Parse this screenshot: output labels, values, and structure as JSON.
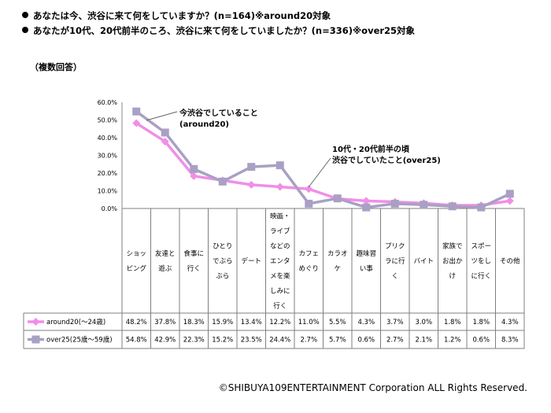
{
  "questions": [
    "あなたは今、渋谷に来て何をしていますか？(n=164)※around20対象",
    "あなたが10代、20代前半のころ、渋谷に来て何をしていましたか？(n=336)※over25対象"
  ],
  "note": "（複数回答）",
  "copyright": "©SHIBUYA109ENTERTAINMENT Corporation  ALL Rights Reserved.",
  "annotations": {
    "around20": [
      "今渋谷でしていること",
      "(around20)"
    ],
    "over25": [
      "10代・20代前半の頃",
      "渋谷でしていたこと(over25)"
    ]
  },
  "chart_data": {
    "type": "line",
    "categories": [
      [
        "ショッ",
        "ピング"
      ],
      [
        "友達と",
        "遊ぶ"
      ],
      [
        "食事に",
        "行く"
      ],
      [
        "ひとり",
        "でぶら",
        "ぶら"
      ],
      [
        "デート"
      ],
      [
        "映画・",
        "ライブ",
        "などの",
        "エンタ",
        "メを楽",
        "しみに",
        "行く"
      ],
      [
        "カフェ",
        "めぐり"
      ],
      [
        "カラオ",
        "ケ"
      ],
      [
        "趣味習",
        "い事"
      ],
      [
        "プリク",
        "ラに行",
        "く"
      ],
      [
        "バイト"
      ],
      [
        "家族で",
        "お出か",
        "け"
      ],
      [
        "スポー",
        "ツをし",
        "に行く"
      ],
      [
        "その他"
      ]
    ],
    "y_ticks": [
      "0.0%",
      "10.0%",
      "20.0%",
      "30.0%",
      "40.0%",
      "50.0%",
      "60.0%"
    ],
    "ylim": [
      0,
      60
    ],
    "series": [
      {
        "name": "around20(～24歳)",
        "color": "#f08ee8",
        "marker": "diamond",
        "values": [
          48.2,
          37.8,
          18.3,
          15.9,
          13.4,
          12.2,
          11.0,
          5.5,
          4.3,
          3.7,
          3.0,
          1.8,
          1.8,
          4.3
        ],
        "labels": [
          "48.2%",
          "37.8%",
          "18.3%",
          "15.9%",
          "13.4%",
          "12.2%",
          "11.0%",
          "5.5%",
          "4.3%",
          "3.7%",
          "3.0%",
          "1.8%",
          "1.8%",
          "4.3%"
        ]
      },
      {
        "name": "over25(25歳～59歳)",
        "color": "#a9a0c4",
        "marker": "square",
        "values": [
          54.8,
          42.9,
          22.3,
          15.2,
          23.5,
          24.4,
          2.7,
          5.7,
          0.6,
          2.7,
          2.1,
          1.2,
          0.6,
          8.3
        ],
        "labels": [
          "54.8%",
          "42.9%",
          "22.3%",
          "15.2%",
          "23.5%",
          "24.4%",
          "2.7%",
          "5.7%",
          "0.6%",
          "2.7%",
          "2.1%",
          "1.2%",
          "0.6%",
          "8.3%"
        ]
      }
    ]
  }
}
